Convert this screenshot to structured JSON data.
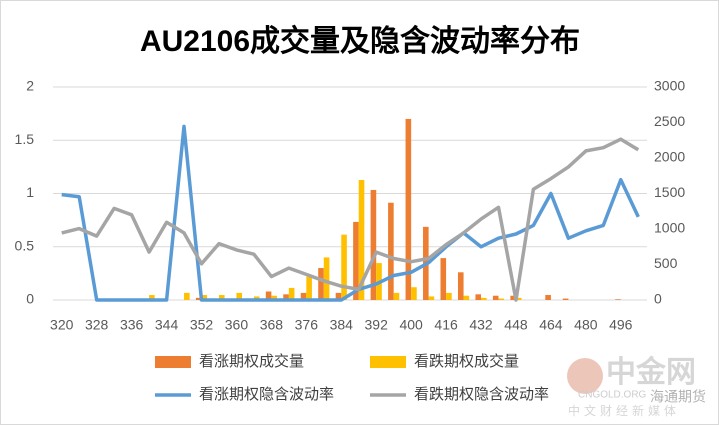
{
  "chart_data": {
    "type": "bar_line",
    "title": "AU2106成交量及隐含波动率分布",
    "categories": [
      "320",
      null,
      "328",
      null,
      "336",
      null,
      "344",
      null,
      "352",
      null,
      "360",
      null,
      "368",
      null,
      "376",
      null,
      "384",
      null,
      "392",
      null,
      "400",
      null,
      "416",
      null,
      "432",
      null,
      "448",
      null,
      "464",
      null,
      "480",
      null,
      "496",
      null
    ],
    "series": [
      {
        "name": "看涨期权成交量",
        "color": "#ed7d31",
        "kind": "bar",
        "axis": "y2",
        "values": [
          0,
          0,
          0,
          0,
          0,
          0,
          0,
          0,
          30,
          0,
          0,
          0,
          120,
          80,
          100,
          450,
          100,
          1100,
          1550,
          1370,
          2550,
          1030,
          590,
          390,
          80,
          60,
          60,
          0,
          70,
          20,
          0,
          0,
          10,
          0
        ]
      },
      {
        "name": "看跌期权成交量",
        "color": "#ffc000",
        "kind": "bar",
        "axis": "y2",
        "values": [
          0,
          0,
          0,
          0,
          0,
          70,
          0,
          100,
          70,
          70,
          100,
          50,
          60,
          170,
          330,
          600,
          920,
          1690,
          520,
          100,
          180,
          50,
          100,
          60,
          30,
          20,
          30,
          0,
          0,
          0,
          0,
          0,
          0,
          0
        ]
      },
      {
        "name": "看涨期权隐含波动率",
        "color": "#5b9bd5",
        "kind": "line",
        "values": [
          0.99,
          0.97,
          0,
          0,
          0,
          0,
          0,
          1.63,
          0,
          0,
          0,
          0,
          0,
          0,
          0,
          0,
          0,
          0.1,
          0.15,
          0.23,
          0.26,
          0.35,
          0.5,
          0.63,
          0.5,
          0.58,
          0.62,
          0.7,
          1.0,
          0.58,
          0.65,
          0.7,
          1.13,
          0.78
        ]
      },
      {
        "name": "看跌期权隐含波动率",
        "color": "#a5a5a5",
        "kind": "line",
        "values": [
          0.63,
          0.67,
          0.6,
          0.86,
          0.8,
          0.45,
          0.73,
          0.63,
          0.34,
          0.53,
          0.47,
          0.43,
          0.22,
          0.3,
          0.24,
          0.18,
          0.13,
          0.1,
          0.45,
          0.39,
          0.36,
          0.39,
          0.52,
          0.63,
          0.76,
          0.87,
          0,
          1.04,
          1.14,
          1.25,
          1.4,
          1.43,
          1.51,
          1.41
        ]
      }
    ],
    "ylim": [
      0,
      2
    ],
    "yticks": [
      0,
      0.5,
      1,
      1.5,
      2
    ],
    "y2lim": [
      0,
      3000
    ],
    "y2ticks": [
      0,
      500,
      1000,
      1500,
      2000,
      2500,
      3000
    ],
    "grid": true,
    "legend": "bottom",
    "watermark": {
      "brand": "中金网",
      "site": "CNGOLD.ORG",
      "source": "海通期货",
      "tagline": "中文财经新媒体"
    }
  }
}
